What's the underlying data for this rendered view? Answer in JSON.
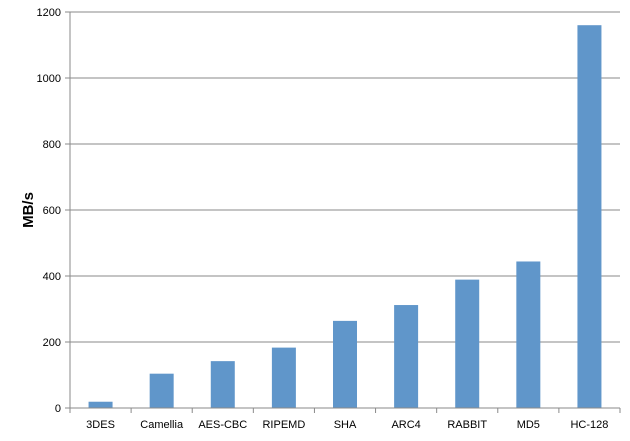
{
  "chart_data": {
    "type": "bar",
    "title": "",
    "xlabel": "",
    "ylabel": "MB/s",
    "categories": [
      "3DES",
      "Camellia",
      "AES-CBC",
      "RIPEMD",
      "SHA",
      "ARC4",
      "RABBIT",
      "MD5",
      "HC-128"
    ],
    "values": [
      19,
      104,
      142,
      183,
      264,
      312,
      389,
      444,
      1160
    ],
    "ylim": [
      0,
      1200
    ],
    "yticks": [
      0,
      200,
      400,
      600,
      800,
      1000,
      1200
    ],
    "grid": true,
    "legend": "none",
    "bar_color": "#6096CA"
  }
}
